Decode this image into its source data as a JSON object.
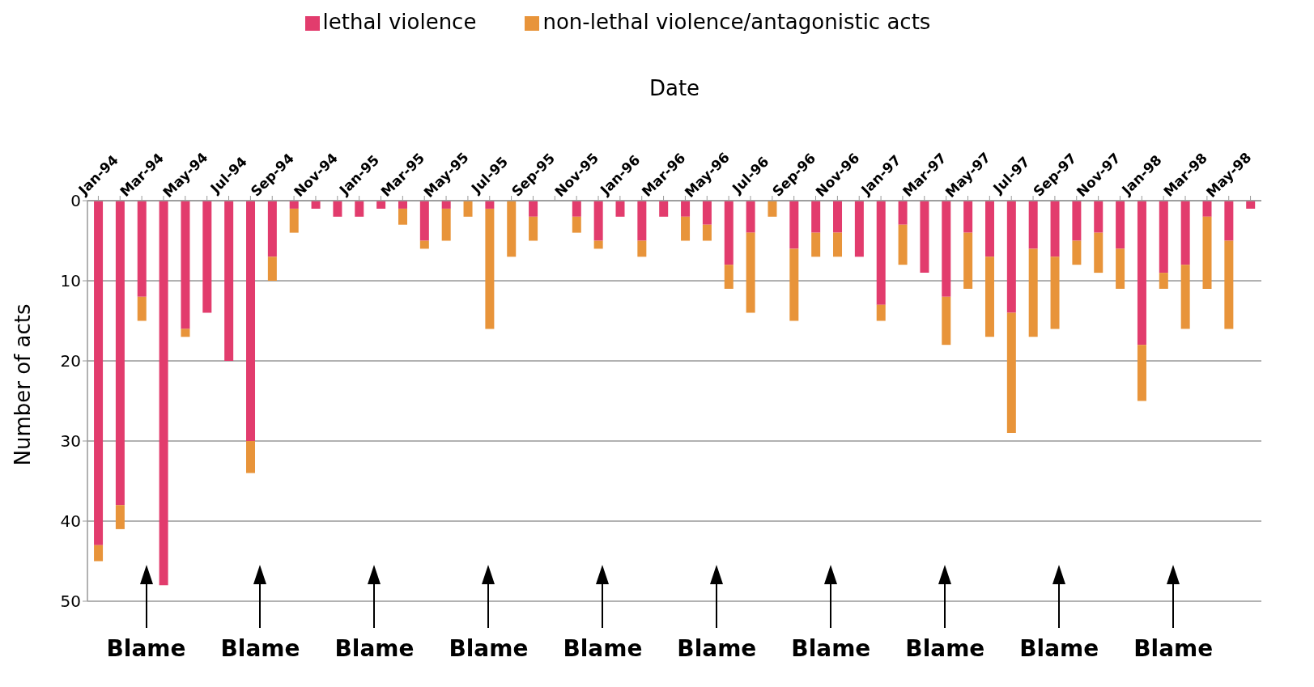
{
  "chart_data": {
    "type": "bar",
    "stacked": true,
    "xlabel": "Date",
    "ylabel": "Number of acts",
    "categories": [
      "Jan-94",
      null,
      "Mar-94",
      null,
      "May-94",
      null,
      "Jul-94",
      null,
      "Sep-94",
      null,
      "Nov-94",
      null,
      "Jan-95",
      null,
      "Mar-95",
      null,
      "May-95",
      null,
      "Jul-95",
      null,
      "Sep-95",
      null,
      "Nov-95",
      null,
      "Jan-96",
      null,
      "Mar-96",
      null,
      "May-96",
      null,
      "Jul-96",
      null,
      "Sep-96",
      null,
      "Nov-96",
      null,
      "Jan-97",
      null,
      "Mar-97",
      null,
      "May-97",
      null,
      "Jul-97",
      null,
      "Sep-97",
      null,
      "Nov-97",
      null,
      "Jan-98",
      null,
      "Mar-98",
      null,
      "May-98",
      null
    ],
    "series": [
      {
        "name": "lethal violence",
        "color": "#e23c6d",
        "values": [
          43,
          38,
          12,
          48,
          16,
          14,
          20,
          30,
          7,
          1,
          1,
          2,
          2,
          1,
          1,
          5,
          1,
          0,
          1,
          0,
          2,
          0,
          2,
          5,
          2,
          5,
          2,
          2,
          3,
          8,
          4,
          0,
          6,
          4,
          4,
          7,
          13,
          3,
          9,
          12,
          4,
          7,
          14,
          6,
          7,
          5,
          4,
          6,
          18,
          9,
          8,
          2,
          5,
          1
        ]
      },
      {
        "name": "non-lethal violence/antagonistic acts",
        "color": "#e8943a",
        "values": [
          2,
          3,
          3,
          0,
          1,
          0,
          0,
          4,
          3,
          3,
          0,
          0,
          0,
          0,
          2,
          1,
          4,
          2,
          15,
          7,
          3,
          0,
          2,
          1,
          0,
          2,
          0,
          3,
          2,
          3,
          10,
          2,
          9,
          3,
          3,
          0,
          2,
          5,
          0,
          6,
          7,
          10,
          15,
          11,
          9,
          3,
          5,
          5,
          7,
          2,
          8,
          9,
          11,
          0
        ]
      }
    ],
    "ylim": [
      50,
      0
    ],
    "yticks": [
      0,
      10,
      20,
      30,
      40,
      50
    ],
    "grid": "y",
    "legend": "top",
    "annotations": [
      "Blame",
      "Blame",
      "Blame",
      "Blame",
      "Blame",
      "Blame",
      "Blame",
      "Blame",
      "Blame",
      "Blame"
    ]
  }
}
